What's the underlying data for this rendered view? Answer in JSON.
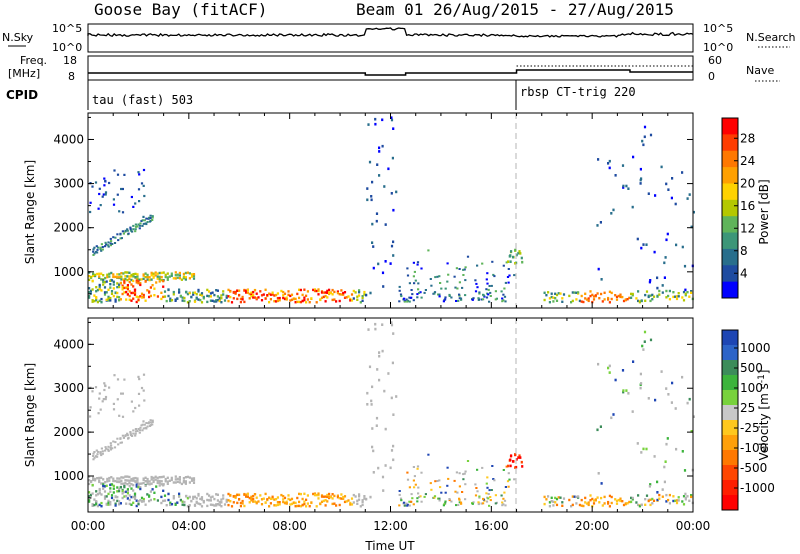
{
  "title": {
    "station": "Goose Bay (fitACF)",
    "beam_date": "Beam 01  26/Aug/2015 - 27/Aug/2015"
  },
  "summary_panel": {
    "nsky_label": "N.Sky",
    "nsky_ticks": [
      "10^5",
      "10^0"
    ],
    "nsearch_label": "N.Search",
    "right_ticks_top": [
      "10^5",
      "10^0"
    ],
    "freq_label_1": "Freq.",
    "freq_label_2": "[MHz]",
    "freq_ticks": [
      "18",
      "8"
    ],
    "nave_label": "Nave",
    "nave_ticks": [
      "60",
      "0"
    ],
    "cpid_label": "CPID",
    "cpid_1": "tau (fast) 503",
    "cpid_2": "rbsp CT-trig 220"
  },
  "chart_data": [
    {
      "type": "heatmap",
      "name": "power",
      "ylabel": "Slant Range [km]",
      "ylim": [
        180,
        4600
      ],
      "yticks": [
        "4000",
        "3000",
        "2000",
        "1000"
      ],
      "xlim_hours": [
        0,
        24
      ],
      "colorbar_label": "Power [dB]",
      "colorbar_ticks": [
        "28",
        "24",
        "20",
        "16",
        "12",
        "8",
        "4"
      ],
      "colorbar_colors": [
        "#ff0000",
        "#ff3c00",
        "#ff7800",
        "#ffa000",
        "#ffd200",
        "#b4c800",
        "#5fb45a",
        "#3c9678",
        "#286e8c",
        "#1e4ba0",
        "#0000ff"
      ]
    },
    {
      "type": "heatmap",
      "name": "velocity",
      "ylabel": "Slant Range [km]",
      "ylim": [
        180,
        4600
      ],
      "yticks": [
        "4000",
        "3000",
        "2000",
        "1000"
      ],
      "xlim_hours": [
        0,
        24
      ],
      "xlabel": "Time UT",
      "xticks": [
        "00:00",
        "04:00",
        "08:00",
        "12:00",
        "16:00",
        "20:00",
        "00:00"
      ],
      "colorbar_label": "Velocity [m s",
      "colorbar_label_sup": "-1",
      "colorbar_label_end": "]",
      "colorbar_ticks": [
        "1000",
        "500",
        "100",
        "25",
        "-25",
        "-100",
        "-500",
        "-1000"
      ],
      "colorbar_colors": [
        "#1e46b4",
        "#2d64c8",
        "#3c8c5a",
        "#3cb43c",
        "#78d23c",
        "#c8c8c8",
        "#ffc81e",
        "#ffa00a",
        "#ff7800",
        "#ff4600",
        "#ff1e00",
        "#ff0000"
      ]
    }
  ],
  "colors": {
    "dashed_marker": "#b4b4b4",
    "ground_scatter": "#b4b4b4"
  }
}
